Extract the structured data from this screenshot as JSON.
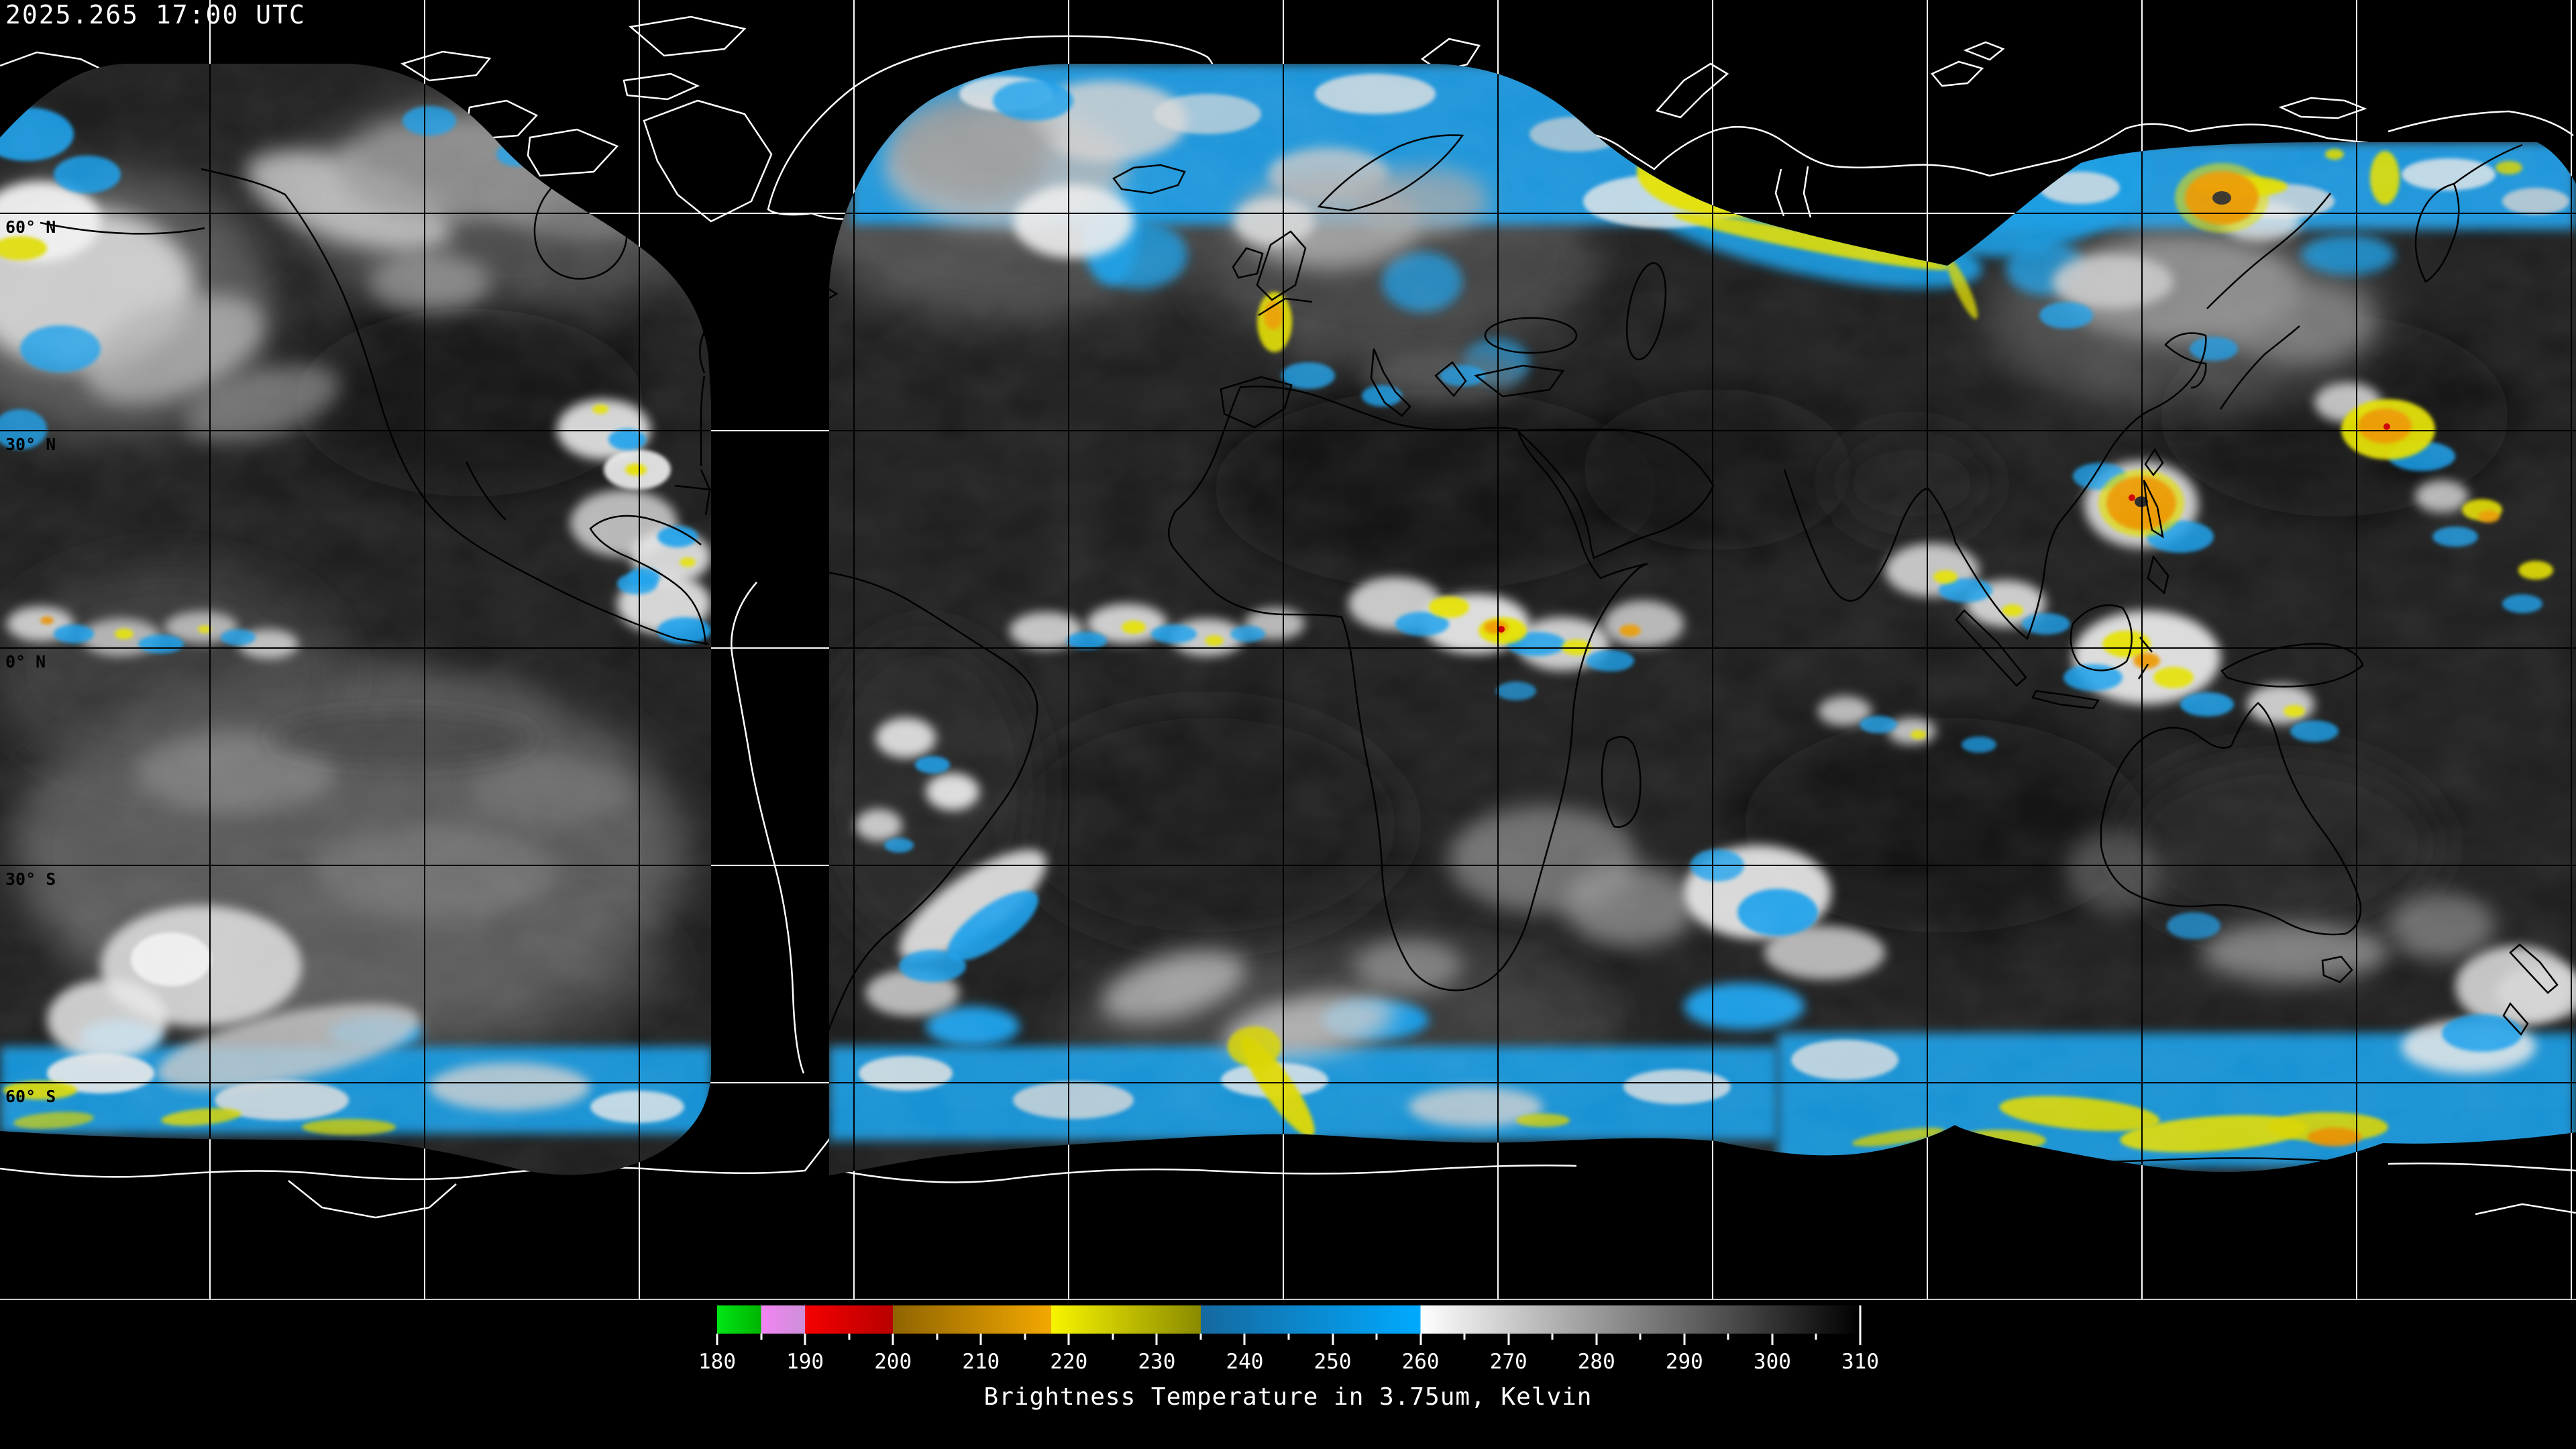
{
  "header": {
    "timestamp": "2025.265 17:00 UTC"
  },
  "map": {
    "projection": "equirectangular global composite",
    "lat_labels": [
      {
        "text": "60° N"
      },
      {
        "text": "30° N"
      },
      {
        "text": "0° N"
      },
      {
        "text": "30° S"
      },
      {
        "text": "60° S"
      }
    ],
    "grid": {
      "lat_step_deg": 30,
      "lon_step_deg": 30
    },
    "colors": {
      "no_data_background": "#000000",
      "mid_cloud_blue": "#1a9ce4",
      "cold_top_yellow": "#e2de00",
      "colder_top_orange": "#eda000",
      "coldest_red": "#cc0000",
      "warm_surface_dark": "#1f1f1f",
      "cloud_white": "#f0f0f0",
      "gridline_over_imagery": "#000000",
      "gridline_over_void": "#ffffff",
      "coastline_over_imagery": "#000000",
      "coastline_over_void": "#ffffff"
    }
  },
  "legend": {
    "title": "Brightness Temperature in 3.75um, Kelvin",
    "unit": "Kelvin",
    "range_min": 180,
    "range_max": 310,
    "minor_tick_step": 5,
    "major_ticks": [
      180,
      190,
      200,
      210,
      220,
      230,
      240,
      250,
      260,
      270,
      280,
      290,
      300,
      310
    ],
    "segments": [
      {
        "from": 180,
        "to": 185,
        "color_start": "#00e616",
        "color_end": "#00b400"
      },
      {
        "from": 185,
        "to": 190,
        "color_start": "#f484f4",
        "color_end": "#cc8fd8"
      },
      {
        "from": 190,
        "to": 200,
        "color_start": "#f50000",
        "color_end": "#b80000"
      },
      {
        "from": 200,
        "to": 218,
        "color_start": "#8f6400",
        "color_end": "#f2a800"
      },
      {
        "from": 218,
        "to": 235,
        "color_start": "#f8f400",
        "color_end": "#8a8a00"
      },
      {
        "from": 235,
        "to": 260,
        "color_start": "#15699f",
        "color_end": "#00aaff"
      },
      {
        "from": 260,
        "to": 310,
        "color_start": "#ffffff",
        "color_end": "#000000"
      }
    ]
  }
}
